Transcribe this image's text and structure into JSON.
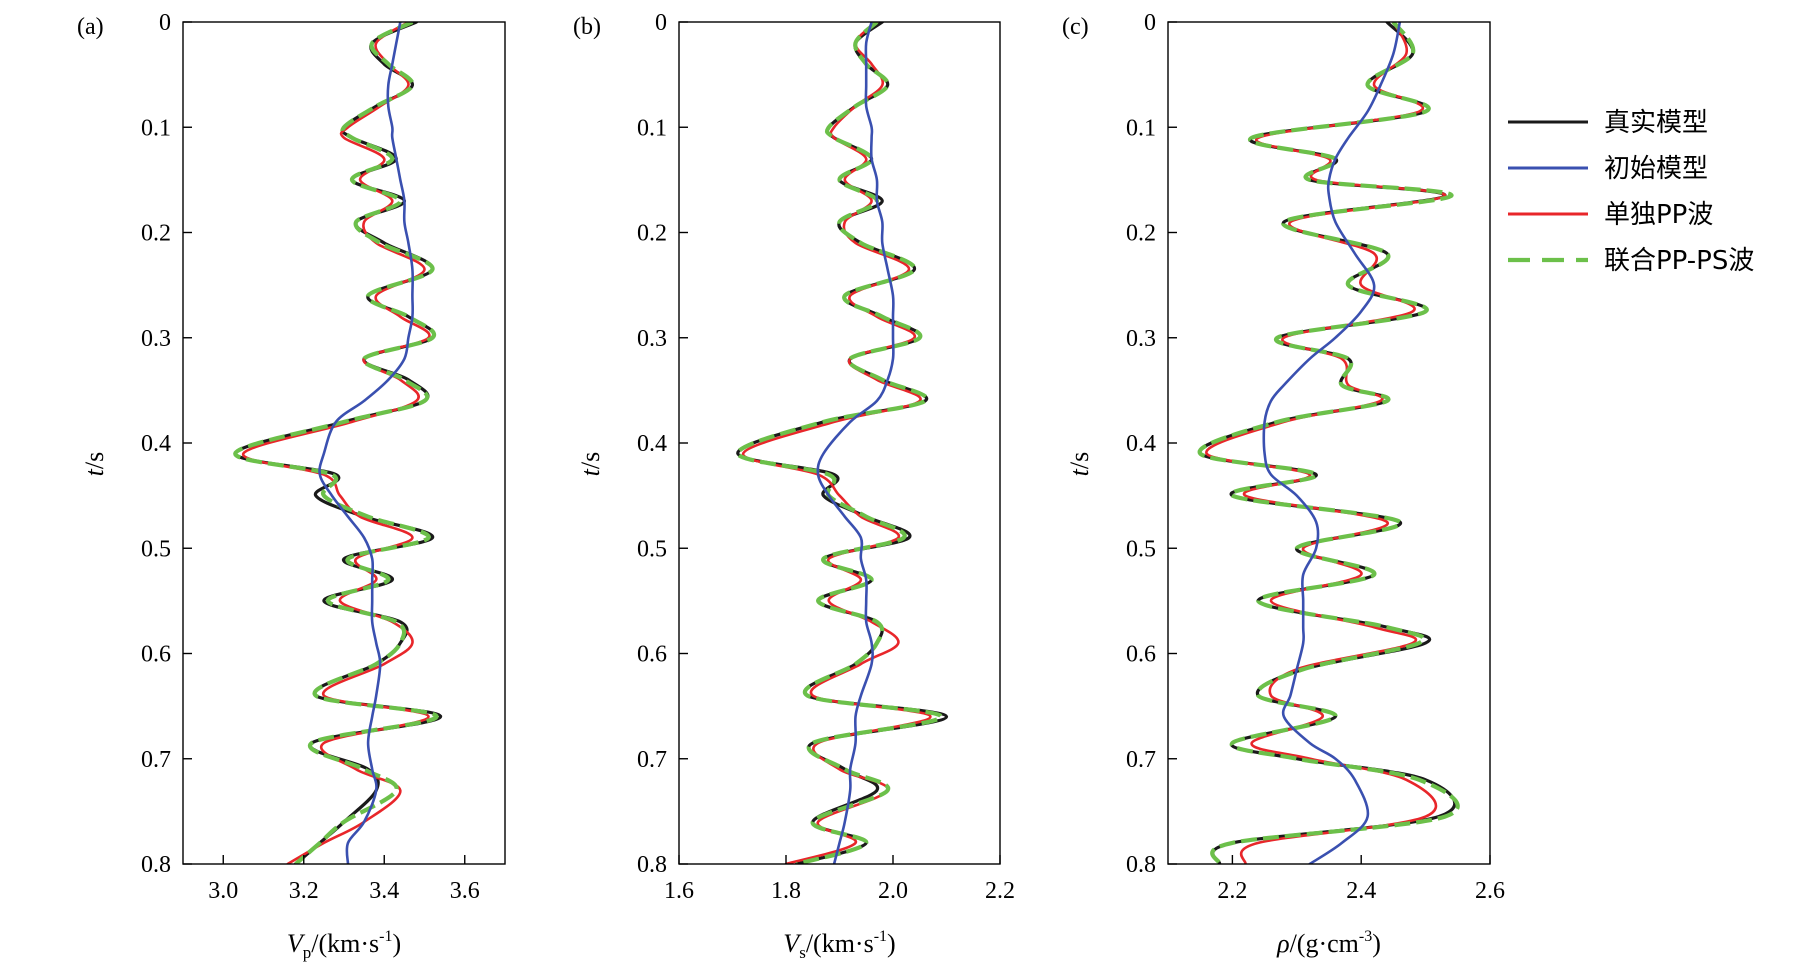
{
  "chart_data": [
    {
      "type": "line",
      "panel": "(a)",
      "xlabel": "Vp/(km·s-1)",
      "xlabel_main": "V",
      "xlabel_sub": "p",
      "xlabel_unit": "/(km·s",
      "xlabel_exp": "-1",
      "xlabel_tail": ")",
      "ylabel": "t/s",
      "xlim": [
        2.9,
        3.7
      ],
      "ylim": [
        0,
        0.8
      ],
      "xticks": [
        3.0,
        3.2,
        3.4,
        3.6
      ],
      "xtick_labels": [
        "3.0",
        "3.2",
        "3.4",
        "3.6"
      ],
      "yticks": [
        0,
        0.1,
        0.2,
        0.3,
        0.4,
        0.5,
        0.6,
        0.7,
        0.8
      ],
      "ytick_labels": [
        "0",
        "0.1",
        "0.2",
        "0.3",
        "0.4",
        "0.5",
        "0.6",
        "0.7",
        "0.8"
      ],
      "t": [
        0.0,
        0.02,
        0.04,
        0.06,
        0.08,
        0.1,
        0.11,
        0.13,
        0.15,
        0.17,
        0.19,
        0.21,
        0.235,
        0.26,
        0.28,
        0.3,
        0.32,
        0.34,
        0.36,
        0.38,
        0.41,
        0.43,
        0.45,
        0.47,
        0.49,
        0.51,
        0.53,
        0.55,
        0.57,
        0.59,
        0.61,
        0.64,
        0.66,
        0.685,
        0.71,
        0.73,
        0.76,
        0.78,
        0.8
      ],
      "true": [
        3.48,
        3.37,
        3.4,
        3.47,
        3.38,
        3.3,
        3.32,
        3.43,
        3.32,
        3.45,
        3.33,
        3.4,
        3.52,
        3.36,
        3.46,
        3.52,
        3.35,
        3.46,
        3.5,
        3.3,
        3.03,
        3.28,
        3.23,
        3.35,
        3.52,
        3.3,
        3.42,
        3.25,
        3.44,
        3.44,
        3.38,
        3.23,
        3.54,
        3.22,
        3.36,
        3.38,
        3.3,
        3.24,
        3.18
      ],
      "initial": [
        3.44,
        3.43,
        3.42,
        3.41,
        3.41,
        3.42,
        3.42,
        3.43,
        3.44,
        3.45,
        3.45,
        3.46,
        3.47,
        3.47,
        3.47,
        3.46,
        3.45,
        3.41,
        3.35,
        3.28,
        3.25,
        3.24,
        3.27,
        3.31,
        3.35,
        3.37,
        3.37,
        3.37,
        3.37,
        3.38,
        3.39,
        3.38,
        3.37,
        3.36,
        3.37,
        3.38,
        3.35,
        3.31,
        3.31
      ],
      "pp_only": [
        3.46,
        3.38,
        3.41,
        3.46,
        3.39,
        3.31,
        3.3,
        3.4,
        3.34,
        3.42,
        3.35,
        3.38,
        3.5,
        3.38,
        3.44,
        3.51,
        3.35,
        3.44,
        3.48,
        3.32,
        3.05,
        3.25,
        3.29,
        3.34,
        3.47,
        3.33,
        3.38,
        3.29,
        3.42,
        3.47,
        3.4,
        3.25,
        3.51,
        3.25,
        3.33,
        3.44,
        3.35,
        3.25,
        3.16
      ],
      "joint_pp_ps": [
        3.47,
        3.37,
        3.41,
        3.47,
        3.38,
        3.3,
        3.32,
        3.42,
        3.32,
        3.44,
        3.33,
        3.39,
        3.52,
        3.36,
        3.46,
        3.52,
        3.35,
        3.45,
        3.5,
        3.3,
        3.03,
        3.27,
        3.25,
        3.36,
        3.51,
        3.31,
        3.41,
        3.26,
        3.43,
        3.44,
        3.38,
        3.23,
        3.53,
        3.22,
        3.35,
        3.43,
        3.3,
        3.24,
        3.18
      ]
    },
    {
      "type": "line",
      "panel": "(b)",
      "xlabel": "Vs/(km·s-1)",
      "xlabel_main": "V",
      "xlabel_sub": "s",
      "xlabel_unit": "/(km·s",
      "xlabel_exp": "-1",
      "xlabel_tail": ")",
      "ylabel": "t/s",
      "xlim": [
        1.6,
        2.2
      ],
      "ylim": [
        0,
        0.8
      ],
      "xticks": [
        1.6,
        1.8,
        2.0,
        2.2
      ],
      "xtick_labels": [
        "1.6",
        "1.8",
        "2.0",
        "2.2"
      ],
      "yticks": [
        0,
        0.1,
        0.2,
        0.3,
        0.4,
        0.5,
        0.6,
        0.7,
        0.8
      ],
      "ytick_labels": [
        "0",
        "0.1",
        "0.2",
        "0.3",
        "0.4",
        "0.5",
        "0.6",
        "0.7",
        "0.8"
      ],
      "t": [
        0.0,
        0.02,
        0.04,
        0.06,
        0.08,
        0.1,
        0.11,
        0.13,
        0.15,
        0.17,
        0.19,
        0.21,
        0.235,
        0.26,
        0.28,
        0.3,
        0.32,
        0.34,
        0.36,
        0.38,
        0.41,
        0.43,
        0.45,
        0.47,
        0.49,
        0.51,
        0.53,
        0.55,
        0.57,
        0.59,
        0.61,
        0.64,
        0.66,
        0.685,
        0.71,
        0.73,
        0.76,
        0.78,
        0.8
      ],
      "true": [
        1.98,
        1.93,
        1.95,
        1.99,
        1.93,
        1.88,
        1.89,
        1.96,
        1.9,
        1.98,
        1.9,
        1.94,
        2.04,
        1.91,
        1.98,
        2.05,
        1.92,
        1.98,
        2.06,
        1.87,
        1.71,
        1.89,
        1.87,
        1.95,
        2.03,
        1.87,
        1.96,
        1.86,
        1.97,
        1.97,
        1.93,
        1.84,
        2.1,
        1.85,
        1.91,
        1.97,
        1.85,
        1.95,
        1.82
      ],
      "initial": [
        1.96,
        1.95,
        1.95,
        1.95,
        1.95,
        1.96,
        1.96,
        1.96,
        1.97,
        1.97,
        1.98,
        1.98,
        1.99,
        2.0,
        2.0,
        2.0,
        2.0,
        1.99,
        1.97,
        1.92,
        1.87,
        1.86,
        1.88,
        1.91,
        1.94,
        1.94,
        1.95,
        1.95,
        1.95,
        1.96,
        1.96,
        1.94,
        1.93,
        1.93,
        1.92,
        1.92,
        1.91,
        1.9,
        1.89
      ],
      "pp_only": [
        1.97,
        1.93,
        1.96,
        1.98,
        1.93,
        1.89,
        1.89,
        1.95,
        1.91,
        1.96,
        1.91,
        1.93,
        2.03,
        1.92,
        1.97,
        2.04,
        1.92,
        1.97,
        2.05,
        1.89,
        1.72,
        1.86,
        1.9,
        1.94,
        2.01,
        1.88,
        1.94,
        1.88,
        1.96,
        2.01,
        1.94,
        1.85,
        2.07,
        1.86,
        1.9,
        1.99,
        1.86,
        1.93,
        1.8
      ],
      "joint_pp_ps": [
        1.97,
        1.93,
        1.95,
        1.99,
        1.93,
        1.88,
        1.89,
        1.96,
        1.9,
        1.97,
        1.9,
        1.94,
        2.04,
        1.91,
        1.98,
        2.05,
        1.92,
        1.98,
        2.06,
        1.87,
        1.71,
        1.88,
        1.88,
        1.95,
        2.02,
        1.87,
        1.96,
        1.86,
        1.97,
        1.97,
        1.93,
        1.84,
        2.09,
        1.85,
        1.91,
        1.99,
        1.85,
        1.95,
        1.82
      ]
    },
    {
      "type": "line",
      "panel": "(c)",
      "xlabel": "ρ/(g·cm-3)",
      "xlabel_main": "ρ",
      "xlabel_sub": "",
      "xlabel_unit": "/(g·cm",
      "xlabel_exp": "-3",
      "xlabel_tail": ")",
      "ylabel": "t/s",
      "xlim": [
        2.1,
        2.6
      ],
      "ylim": [
        0,
        0.8
      ],
      "xticks": [
        2.2,
        2.4,
        2.6
      ],
      "xtick_labels": [
        "2.2",
        "2.4",
        "2.6"
      ],
      "yticks": [
        0,
        0.1,
        0.2,
        0.3,
        0.4,
        0.5,
        0.6,
        0.7,
        0.8
      ],
      "ytick_labels": [
        "0",
        "0.1",
        "0.2",
        "0.3",
        "0.4",
        "0.5",
        "0.6",
        "0.7",
        "0.8"
      ],
      "t": [
        0.0,
        0.03,
        0.06,
        0.085,
        0.11,
        0.13,
        0.15,
        0.165,
        0.19,
        0.22,
        0.25,
        0.275,
        0.3,
        0.32,
        0.345,
        0.36,
        0.38,
        0.41,
        0.43,
        0.45,
        0.475,
        0.5,
        0.525,
        0.55,
        0.575,
        0.59,
        0.615,
        0.64,
        0.66,
        0.685,
        0.7,
        0.72,
        0.755,
        0.78,
        0.8
      ],
      "true": [
        2.44,
        2.48,
        2.41,
        2.5,
        2.23,
        2.36,
        2.32,
        2.53,
        2.28,
        2.44,
        2.38,
        2.5,
        2.27,
        2.38,
        2.37,
        2.44,
        2.27,
        2.15,
        2.33,
        2.2,
        2.46,
        2.3,
        2.42,
        2.24,
        2.44,
        2.5,
        2.31,
        2.24,
        2.36,
        2.2,
        2.3,
        2.5,
        2.52,
        2.2,
        2.18
      ],
      "initial": [
        2.46,
        2.45,
        2.43,
        2.41,
        2.38,
        2.36,
        2.35,
        2.35,
        2.36,
        2.39,
        2.42,
        2.4,
        2.36,
        2.32,
        2.28,
        2.26,
        2.25,
        2.25,
        2.26,
        2.3,
        2.33,
        2.33,
        2.31,
        2.31,
        2.31,
        2.31,
        2.3,
        2.29,
        2.28,
        2.32,
        2.36,
        2.39,
        2.41,
        2.37,
        2.32
      ],
      "pp_only": [
        2.45,
        2.47,
        2.42,
        2.49,
        2.24,
        2.35,
        2.33,
        2.53,
        2.29,
        2.42,
        2.4,
        2.48,
        2.28,
        2.37,
        2.38,
        2.43,
        2.28,
        2.16,
        2.32,
        2.22,
        2.44,
        2.31,
        2.4,
        2.26,
        2.42,
        2.48,
        2.3,
        2.26,
        2.34,
        2.23,
        2.32,
        2.47,
        2.5,
        2.24,
        2.22
      ],
      "joint_pp_ps": [
        2.45,
        2.48,
        2.41,
        2.5,
        2.23,
        2.36,
        2.32,
        2.54,
        2.28,
        2.44,
        2.38,
        2.5,
        2.27,
        2.38,
        2.37,
        2.44,
        2.27,
        2.15,
        2.33,
        2.2,
        2.46,
        2.3,
        2.42,
        2.24,
        2.44,
        2.49,
        2.31,
        2.24,
        2.36,
        2.2,
        2.3,
        2.49,
        2.53,
        2.2,
        2.18
      ]
    }
  ],
  "legend": {
    "placement": "right",
    "entries": [
      {
        "key": "true",
        "label": "真实模型",
        "color": "#1a1a1a",
        "dashed": false
      },
      {
        "key": "initial",
        "label": "初始模型",
        "color": "#3a50b0",
        "dashed": false
      },
      {
        "key": "pp_only",
        "label": "单独PP波",
        "color": "#e8262a",
        "dashed": false
      },
      {
        "key": "joint_pp_ps",
        "label": "联合PP-PS波",
        "color": "#6cc04a",
        "dashed": true
      }
    ]
  }
}
